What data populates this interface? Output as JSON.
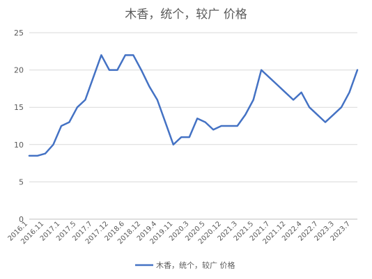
{
  "chart_data": {
    "type": "line",
    "title": "木香，统个，较广 价格",
    "xlabel": "",
    "ylabel": "",
    "ylim": [
      0,
      25
    ],
    "yticks": [
      0,
      5,
      10,
      15,
      20,
      25
    ],
    "grid": true,
    "legend_position": "bottom",
    "color": "#4472C4",
    "tick_labels": [
      "2016.1",
      "2016.11",
      "2017.1",
      "2017.5",
      "2017.7",
      "2017.12",
      "2018.6",
      "2018.12",
      "2019.4",
      "2019.11",
      "2020.3",
      "2020.5",
      "2020.12",
      "2021.3",
      "2021.5",
      "2021.7",
      "2021.12",
      "2022.4",
      "2022.7",
      "2023.3",
      "2023.7"
    ],
    "series": [
      {
        "name": "木香，统个，较广 价格",
        "values": [
          8.5,
          8.5,
          8.8,
          10,
          12.5,
          13,
          15,
          16,
          19,
          22,
          20,
          20,
          22,
          22,
          20,
          17.8,
          16,
          13,
          10,
          11,
          11,
          13.5,
          13,
          12,
          12.5,
          12.5,
          12.5,
          14,
          16,
          20,
          19,
          18,
          17,
          16,
          17,
          15,
          14,
          13,
          14,
          15,
          17,
          20
        ]
      }
    ]
  }
}
